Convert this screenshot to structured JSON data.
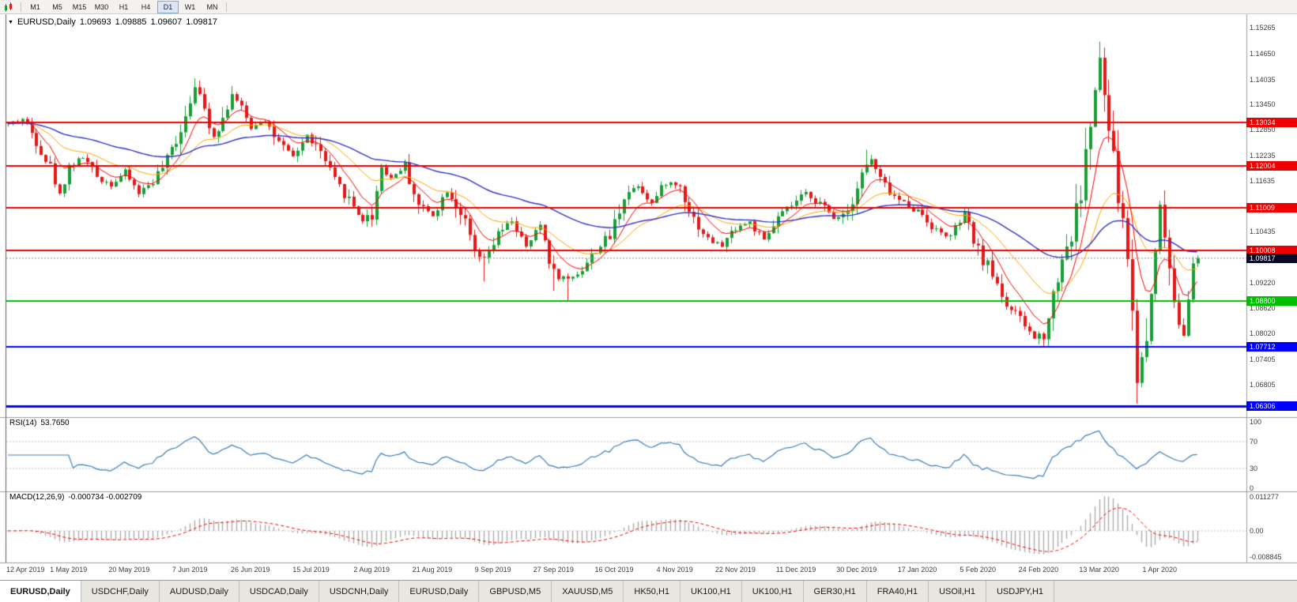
{
  "icons": {
    "dropdown_arrow": "▼"
  },
  "toolbar": {
    "periods": [
      "M1",
      "M5",
      "M15",
      "M30",
      "H1",
      "H4",
      "D1",
      "W1",
      "MN"
    ],
    "active_period": "D1"
  },
  "chart": {
    "title": {
      "symbol": "EURUSD,Daily",
      "open": "1.09693",
      "high": "1.09885",
      "low": "1.09607",
      "close": "1.09817"
    },
    "price_axis_labels": [
      "1.15265",
      "1.14650",
      "1.14035",
      "1.13450",
      "1.12850",
      "1.12235",
      "1.11635",
      "1.10435",
      "1.09220",
      "1.08620",
      "1.08020",
      "1.07405",
      "1.06805"
    ],
    "current_price": {
      "value": "1.09817",
      "color": "#0A0A28"
    },
    "hlines": [
      {
        "label": "1.13034",
        "price": 1.13034,
        "color": "#EE0000",
        "width": 2
      },
      {
        "label": "1.12004",
        "price": 1.12004,
        "color": "#EE0000",
        "width": 2
      },
      {
        "label": "1.11009",
        "price": 1.11009,
        "color": "#EE0000",
        "width": 2
      },
      {
        "label": "1.10008",
        "price": 1.10008,
        "color": "#EE0000",
        "width": 2
      },
      {
        "label": "1.08800",
        "price": 1.088,
        "color": "#00BE00",
        "width": 2
      },
      {
        "label": "1.07712",
        "price": 1.07712,
        "color": "#0000FF",
        "width": 2
      },
      {
        "label": "1.06306",
        "price": 1.06306,
        "color": "#0000FF",
        "width": 3
      }
    ],
    "colors": {
      "up": "#18A038",
      "down": "#E81818",
      "ma_fast": "#FF0000",
      "ma_mid": "#FFA500",
      "ma_slow": "#3333CC",
      "rsi_line": "#3C7EBF",
      "macd_hist": "#ADADAD",
      "macd_signal": "#FF0000",
      "bid_line": "#909090"
    }
  },
  "chart_data": {
    "type": "candlestick+indicators",
    "symbol": "EURUSD",
    "timeframe": "Daily",
    "price_range": {
      "top": 1.156,
      "bottom": 1.0605
    },
    "x_axis_dates": [
      {
        "label": "12 Apr 2019",
        "index": 0
      },
      {
        "label": "1 May 2019",
        "index": 13
      },
      {
        "label": "20 May 2019",
        "index": 26
      },
      {
        "label": "7 Jun 2019",
        "index": 39
      },
      {
        "label": "26 Jun 2019",
        "index": 52
      },
      {
        "label": "15 Jul 2019",
        "index": 65
      },
      {
        "label": "2 Aug 2019",
        "index": 78
      },
      {
        "label": "21 Aug 2019",
        "index": 91
      },
      {
        "label": "9 Sep 2019",
        "index": 104
      },
      {
        "label": "27 Sep 2019",
        "index": 117
      },
      {
        "label": "16 Oct 2019",
        "index": 130
      },
      {
        "label": "4 Nov 2019",
        "index": 143
      },
      {
        "label": "22 Nov 2019",
        "index": 156
      },
      {
        "label": "11 Dec 2019",
        "index": 169
      },
      {
        "label": "30 Dec 2019",
        "index": 182
      },
      {
        "label": "17 Jan 2020",
        "index": 195
      },
      {
        "label": "5 Feb 2020",
        "index": 208
      },
      {
        "label": "24 Feb 2020",
        "index": 221
      },
      {
        "label": "13 Mar 2020",
        "index": 234
      },
      {
        "label": "1 Apr 2020",
        "index": 247
      }
    ],
    "anchors": [
      [
        0,
        1.13
      ],
      [
        3,
        1.1312
      ],
      [
        6,
        1.1262
      ],
      [
        9,
        1.1196
      ],
      [
        11,
        1.1132
      ],
      [
        13,
        1.12
      ],
      [
        16,
        1.1222
      ],
      [
        19,
        1.1176
      ],
      [
        22,
        1.1156
      ],
      [
        25,
        1.1186
      ],
      [
        28,
        1.1136
      ],
      [
        31,
        1.1166
      ],
      [
        34,
        1.1212
      ],
      [
        37,
        1.1292
      ],
      [
        40,
        1.1392
      ],
      [
        42,
        1.1332
      ],
      [
        44,
        1.1272
      ],
      [
        46,
        1.1312
      ],
      [
        48,
        1.1372
      ],
      [
        50,
        1.1332
      ],
      [
        52,
        1.1292
      ],
      [
        55,
        1.1312
      ],
      [
        58,
        1.1252
      ],
      [
        61,
        1.1222
      ],
      [
        64,
        1.1272
      ],
      [
        67,
        1.1232
      ],
      [
        70,
        1.1162
      ],
      [
        73,
        1.1122
      ],
      [
        76,
        1.1072
      ],
      [
        78,
        1.1086
      ],
      [
        80,
        1.12
      ],
      [
        82,
        1.1172
      ],
      [
        85,
        1.1202
      ],
      [
        88,
        1.1106
      ],
      [
        91,
        1.1086
      ],
      [
        94,
        1.1142
      ],
      [
        97,
        1.1092
      ],
      [
        100,
        1.0992
      ],
      [
        102,
        1.0976
      ],
      [
        105,
        1.1036
      ],
      [
        108,
        1.1072
      ],
      [
        111,
        1.1006
      ],
      [
        114,
        1.1062
      ],
      [
        117,
        1.0946
      ],
      [
        120,
        1.0932
      ],
      [
        123,
        1.0956
      ],
      [
        126,
        1.1002
      ],
      [
        129,
        1.1032
      ],
      [
        132,
        1.1132
      ],
      [
        135,
        1.1156
      ],
      [
        138,
        1.1112
      ],
      [
        141,
        1.1162
      ],
      [
        144,
        1.1152
      ],
      [
        147,
        1.1076
      ],
      [
        150,
        1.1026
      ],
      [
        153,
        1.1012
      ],
      [
        156,
        1.1056
      ],
      [
        159,
        1.1066
      ],
      [
        162,
        1.1022
      ],
      [
        165,
        1.1076
      ],
      [
        168,
        1.1106
      ],
      [
        171,
        1.1136
      ],
      [
        174,
        1.1112
      ],
      [
        177,
        1.1076
      ],
      [
        180,
        1.1096
      ],
      [
        183,
        1.1186
      ],
      [
        185,
        1.1216
      ],
      [
        187,
        1.1166
      ],
      [
        190,
        1.1126
      ],
      [
        193,
        1.1106
      ],
      [
        196,
        1.1086
      ],
      [
        199,
        1.1046
      ],
      [
        202,
        1.1032
      ],
      [
        205,
        1.1086
      ],
      [
        208,
        1.0996
      ],
      [
        211,
        1.0946
      ],
      [
        214,
        1.0872
      ],
      [
        217,
        1.0836
      ],
      [
        220,
        1.0792
      ],
      [
        222,
        1.0806
      ],
      [
        224,
        1.0892
      ],
      [
        226,
        1.0986
      ],
      [
        228,
        1.1036
      ],
      [
        230,
        1.1142
      ],
      [
        232,
        1.1302
      ],
      [
        234,
        1.1452
      ],
      [
        236,
        1.1282
      ],
      [
        238,
        1.1132
      ],
      [
        240,
        1.0992
      ],
      [
        242,
        1.0702
      ],
      [
        244,
        1.0792
      ],
      [
        245,
        1.0902
      ],
      [
        246,
        1.1032
      ],
      [
        247,
        1.1102
      ],
      [
        248,
        1.1036
      ],
      [
        249,
        1.0962
      ],
      [
        250,
        1.0892
      ],
      [
        251,
        1.0836
      ],
      [
        252,
        1.0806
      ],
      [
        253,
        1.0872
      ],
      [
        254,
        1.0942
      ],
      [
        255,
        1.0982
      ]
    ],
    "extremes": [
      {
        "index": 40,
        "high": 1.1408
      },
      {
        "index": 48,
        "high": 1.139
      },
      {
        "index": 102,
        "low": 1.0926
      },
      {
        "index": 117,
        "low": 1.0904
      },
      {
        "index": 120,
        "low": 1.0879
      },
      {
        "index": 184,
        "high": 1.1239
      },
      {
        "index": 221,
        "low": 1.0778
      },
      {
        "index": 234,
        "high": 1.1495
      },
      {
        "index": 242,
        "low": 1.0637
      }
    ],
    "last_candle": {
      "open": 1.09693,
      "high": 1.09885,
      "low": 1.09607,
      "close": 1.09817
    },
    "indicators": {
      "rsi": {
        "name": "RSI(14)",
        "value": "53.7650",
        "levels": [
          100,
          70,
          30,
          0
        ]
      },
      "macd": {
        "name": "MACD(12,26,9)",
        "values": "-0.000734 -0.002709",
        "scale_labels": [
          "0.011277",
          "0.00",
          "-0.008845"
        ]
      }
    }
  },
  "tabs": {
    "items": [
      "EURUSD,Daily",
      "USDCHF,Daily",
      "AUDUSD,Daily",
      "USDCAD,Daily",
      "USDCNH,Daily",
      "EURUSD,Daily",
      "GBPUSD,M5",
      "XAUUSD,M5",
      "HK50,H1",
      "UK100,H1",
      "UK100,H1",
      "GER30,H1",
      "FRA40,H1",
      "USOil,H1",
      "USDJPY,H1"
    ],
    "active_index": 0
  }
}
